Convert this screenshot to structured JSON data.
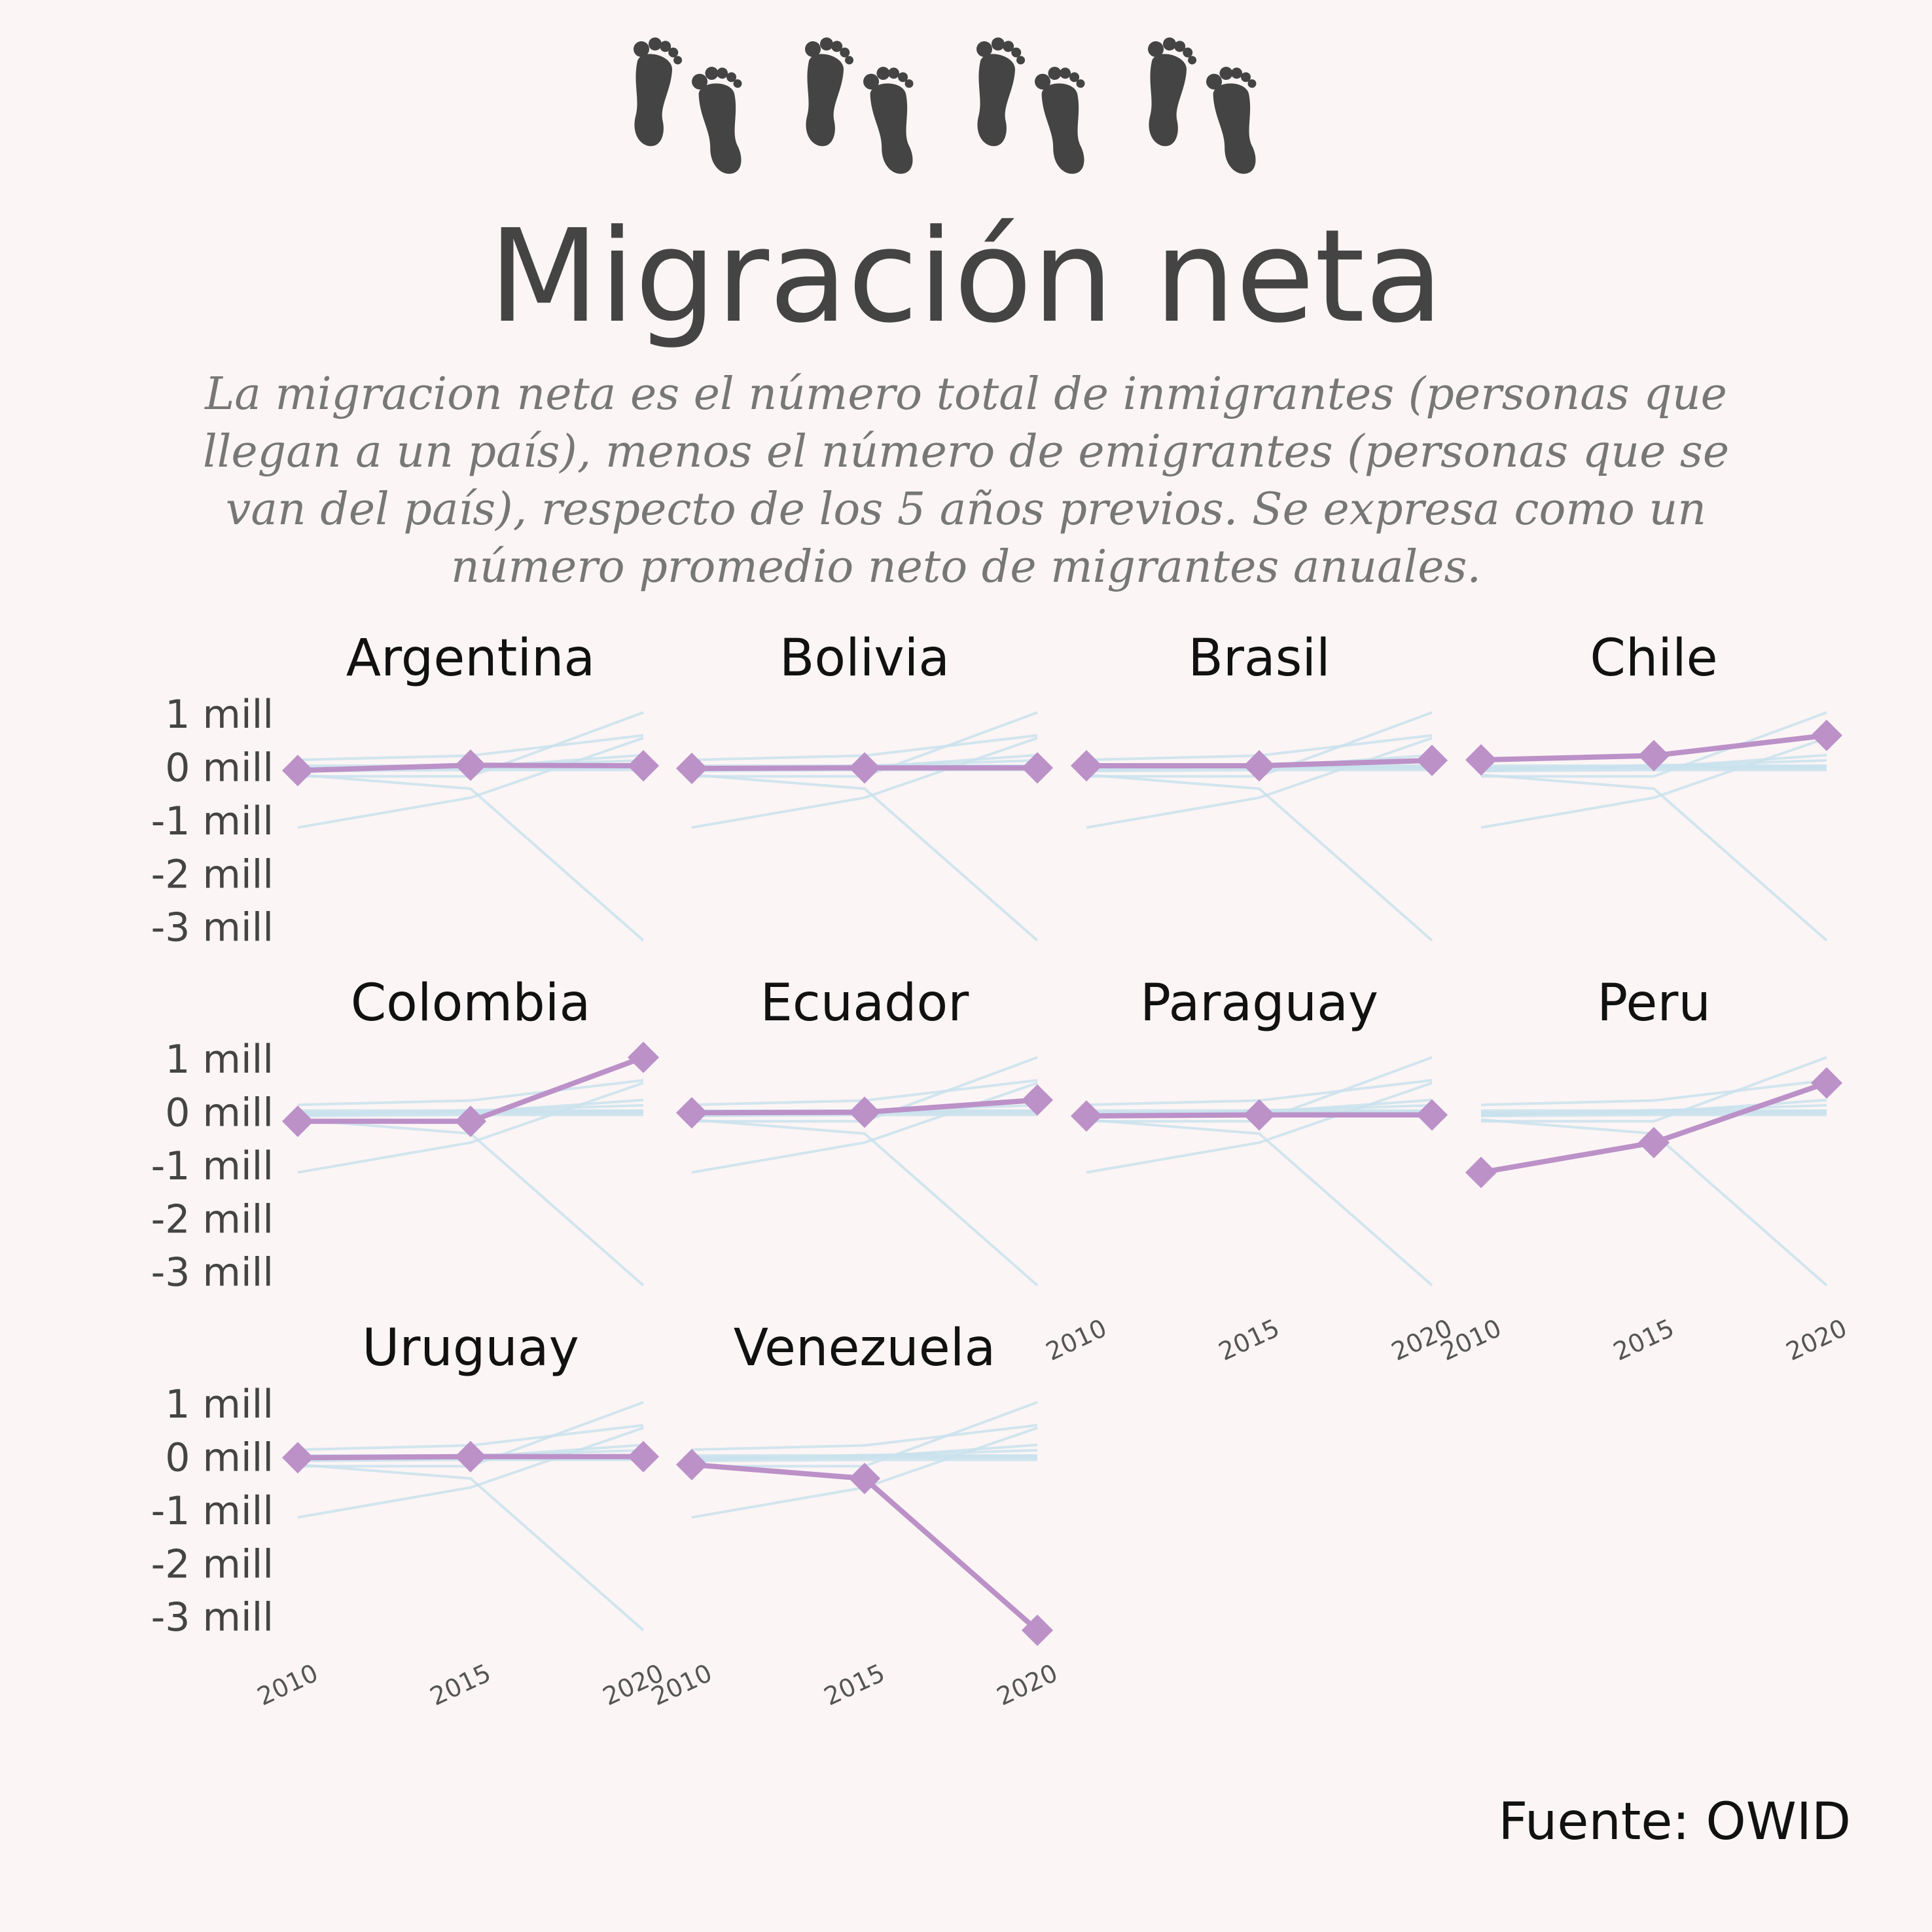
{
  "title": "Migración neta",
  "subtitle": [
    "La migracion neta es el número total de inmigrantes (personas que",
    "llegan a un país), menos el número de emigrantes (personas que se",
    "van del país), respecto de los 5 años previos. Se expresa como un",
    "número promedio neto de migrantes anuales."
  ],
  "source": "Fuente: OWID",
  "icons": [
    "footprints-icon",
    "footprints-icon",
    "footprints-icon",
    "footprints-icon"
  ],
  "colors": {
    "background": "#fcf5f5",
    "highlight": "#bb91c8",
    "context": "#c9e2ec",
    "text": "#444444"
  },
  "chart_data": {
    "type": "line",
    "small_multiples": true,
    "x": [
      2010,
      2015,
      2020
    ],
    "y_ticks": [
      1,
      0,
      -1,
      -2,
      -3
    ],
    "y_tick_labels": [
      "1 mill",
      "0 mill",
      "-1 mill",
      "-2 mill",
      "-3 mill"
    ],
    "x_tick_labels": [
      "2010",
      "2015",
      "2020"
    ],
    "ylim": [
      -3.25,
      1.05
    ],
    "series": [
      {
        "name": "Argentina",
        "values": [
          -0.06,
          0.04,
          0.03
        ]
      },
      {
        "name": "Bolivia",
        "values": [
          -0.02,
          -0.01,
          -0.01
        ]
      },
      {
        "name": "Brasil",
        "values": [
          0.03,
          0.03,
          0.13
        ]
      },
      {
        "name": "Chile",
        "values": [
          0.14,
          0.22,
          0.6
        ]
      },
      {
        "name": "Colombia",
        "values": [
          -0.17,
          -0.17,
          1.03
        ]
      },
      {
        "name": "Ecuador",
        "values": [
          -0.01,
          0.0,
          0.23
        ]
      },
      {
        "name": "Paraguay",
        "values": [
          -0.07,
          -0.05,
          -0.05
        ]
      },
      {
        "name": "Peru",
        "values": [
          -1.13,
          -0.57,
          0.55
        ]
      },
      {
        "name": "Uruguay",
        "values": [
          -0.01,
          0.01,
          0.01
        ]
      },
      {
        "name": "Venezuela",
        "values": [
          -0.14,
          -0.4,
          -3.25
        ]
      }
    ]
  }
}
